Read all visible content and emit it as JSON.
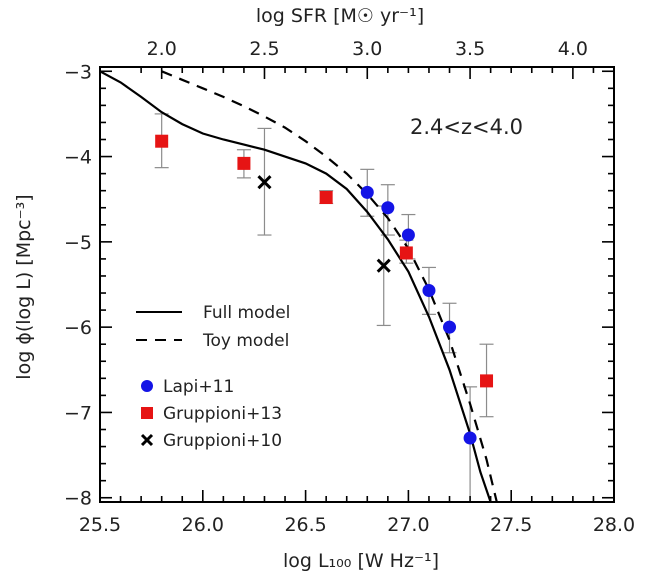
{
  "chart_data": {
    "type": "scatter",
    "xlabel": "log L₁₀₀ [W Hz⁻¹]",
    "ylabel": "log ϕ(log L) [Mpc⁻³]",
    "top_xlabel": "log SFR [M☉ yr⁻¹]",
    "xlim": [
      25.5,
      28.0
    ],
    "ylim": [
      -8.05,
      -2.95
    ],
    "xticks": [
      25.5,
      26.0,
      26.5,
      27.0,
      27.5,
      28.0
    ],
    "xtick_labels": [
      "25.5",
      "26.0",
      "26.5",
      "27.0",
      "27.5",
      "28.0"
    ],
    "yticks": [
      -3,
      -4,
      -5,
      -6,
      -7,
      -8
    ],
    "ytick_labels": [
      "−3",
      "−4",
      "−5",
      "−6",
      "−7",
      "−8"
    ],
    "top_ticks": [
      {
        "label": "2.0",
        "x": 25.8
      },
      {
        "label": "2.5",
        "x": 26.3
      },
      {
        "label": "3.0",
        "x": 26.8
      },
      {
        "label": "3.5",
        "x": 27.3
      },
      {
        "label": "4.0",
        "x": 27.8
      }
    ],
    "grid": false,
    "annotation": "2.4<z<4.0",
    "legend_position": "lower-left",
    "lines": [
      {
        "name": "Full model",
        "style": "solid",
        "color": "#000000",
        "x": [
          25.5,
          25.6,
          25.7,
          25.8,
          25.9,
          26.0,
          26.1,
          26.2,
          26.3,
          26.4,
          26.5,
          26.6,
          26.7,
          26.8,
          26.9,
          27.0,
          27.1,
          27.2,
          27.3,
          27.35,
          27.4
        ],
        "y": [
          -3.0,
          -3.13,
          -3.3,
          -3.48,
          -3.62,
          -3.73,
          -3.8,
          -3.86,
          -3.92,
          -4.0,
          -4.08,
          -4.2,
          -4.38,
          -4.65,
          -4.97,
          -5.35,
          -5.88,
          -6.5,
          -7.25,
          -7.7,
          -8.05
        ]
      },
      {
        "name": "Toy model",
        "style": "dashed",
        "color": "#000000",
        "x": [
          25.8,
          25.9,
          26.0,
          26.1,
          26.2,
          26.3,
          26.4,
          26.5,
          26.6,
          26.7,
          26.8,
          26.9,
          27.0,
          27.1,
          27.2,
          27.3,
          27.38,
          27.43
        ],
        "y": [
          -3.0,
          -3.1,
          -3.2,
          -3.3,
          -3.41,
          -3.53,
          -3.66,
          -3.82,
          -4.0,
          -4.2,
          -4.44,
          -4.72,
          -5.08,
          -5.56,
          -6.15,
          -6.9,
          -7.55,
          -8.05
        ]
      }
    ],
    "series": [
      {
        "name": "Lapi+11",
        "marker": "circle",
        "color": "#1414e6",
        "points": [
          {
            "x": 26.8,
            "y": -4.42,
            "lo": -4.7,
            "hi": -4.15
          },
          {
            "x": 26.9,
            "y": -4.6,
            "lo": -4.92,
            "hi": -4.33
          },
          {
            "x": 27.0,
            "y": -4.92,
            "lo": -5.2,
            "hi": -4.68
          },
          {
            "x": 27.1,
            "y": -5.57,
            "lo": -5.85,
            "hi": -5.3
          },
          {
            "x": 27.2,
            "y": -6.0,
            "lo": -6.3,
            "hi": -5.72
          },
          {
            "x": 27.3,
            "y": -7.3,
            "lo": -8.05,
            "hi": -6.7
          }
        ]
      },
      {
        "name": "Gruppioni+13",
        "marker": "square",
        "color": "#e61414",
        "points": [
          {
            "x": 25.8,
            "y": -3.82,
            "lo": -4.13,
            "hi": -3.5
          },
          {
            "x": 26.2,
            "y": -4.08,
            "lo": -4.25,
            "hi": -3.92
          },
          {
            "x": 26.6,
            "y": -4.48,
            "lo": -4.55,
            "hi": -4.4
          },
          {
            "x": 26.99,
            "y": -5.13,
            "lo": -5.25,
            "hi": -4.98
          },
          {
            "x": 27.38,
            "y": -6.63,
            "lo": -7.05,
            "hi": -6.2
          }
        ]
      },
      {
        "name": "Gruppioni+10",
        "marker": "cross",
        "color": "#000000",
        "points": [
          {
            "x": 26.3,
            "y": -4.3,
            "lo": -4.92,
            "hi": -3.67
          },
          {
            "x": 26.88,
            "y": -5.28,
            "lo": -5.98,
            "hi": -4.58
          }
        ]
      }
    ]
  }
}
